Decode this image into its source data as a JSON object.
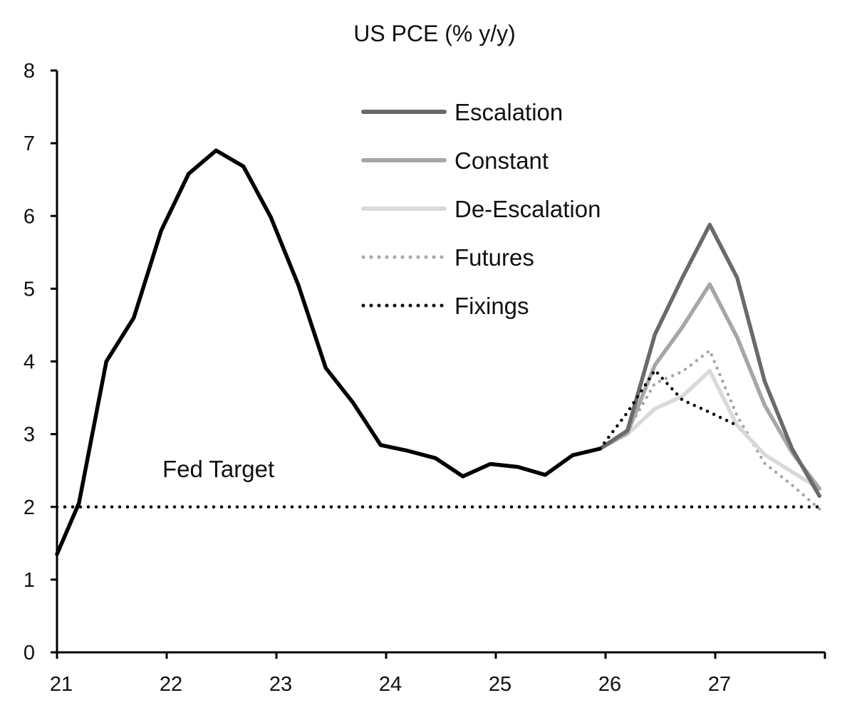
{
  "chart_data": {
    "type": "line",
    "title": "US PCE (% y/y)",
    "xlabel": "",
    "ylabel": "",
    "xlim": [
      21,
      28
    ],
    "ylim": [
      0,
      8
    ],
    "x_ticks": [
      {
        "value": 21,
        "label": "21"
      },
      {
        "value": 22,
        "label": "22"
      },
      {
        "value": 23,
        "label": "23"
      },
      {
        "value": 24,
        "label": "24"
      },
      {
        "value": 25,
        "label": "25"
      },
      {
        "value": 26,
        "label": "26"
      },
      {
        "value": 27,
        "label": "27"
      }
    ],
    "y_ticks": [
      {
        "value": 0,
        "label": "0"
      },
      {
        "value": 1,
        "label": "1"
      },
      {
        "value": 2,
        "label": "2"
      },
      {
        "value": 3,
        "label": "3"
      },
      {
        "value": 4,
        "label": "4"
      },
      {
        "value": 5,
        "label": "5"
      },
      {
        "value": 6,
        "label": "6"
      },
      {
        "value": 7,
        "label": "7"
      },
      {
        "value": 8,
        "label": "8"
      }
    ],
    "grid": false,
    "legend_position": "top-center",
    "series": [
      {
        "name": "",
        "color": "#000000",
        "style": "solid",
        "points": [
          [
            21.0,
            1.35
          ],
          [
            21.2,
            2.05
          ],
          [
            21.45,
            4.0
          ],
          [
            21.7,
            4.6
          ],
          [
            21.95,
            5.8
          ],
          [
            22.2,
            6.58
          ],
          [
            22.45,
            6.9
          ],
          [
            22.7,
            6.68
          ],
          [
            22.95,
            5.98
          ],
          [
            23.2,
            5.05
          ],
          [
            23.45,
            3.91
          ],
          [
            23.7,
            3.43
          ],
          [
            23.95,
            2.85
          ],
          [
            24.2,
            2.77
          ],
          [
            24.45,
            2.67
          ],
          [
            24.7,
            2.42
          ],
          [
            24.95,
            2.59
          ],
          [
            25.2,
            2.55
          ],
          [
            25.45,
            2.44
          ],
          [
            25.7,
            2.71
          ],
          [
            25.95,
            2.8
          ]
        ]
      },
      {
        "name": "Escalation",
        "color": "#6a6a6a",
        "style": "solid",
        "points": [
          [
            25.95,
            2.8
          ],
          [
            26.2,
            3.05
          ],
          [
            26.45,
            4.37
          ],
          [
            26.7,
            5.15
          ],
          [
            26.95,
            5.88
          ],
          [
            27.2,
            5.15
          ],
          [
            27.45,
            3.73
          ],
          [
            27.7,
            2.8
          ],
          [
            27.95,
            2.15
          ]
        ]
      },
      {
        "name": "Constant",
        "color": "#a6a6a6",
        "style": "solid",
        "points": [
          [
            25.95,
            2.8
          ],
          [
            26.2,
            3.02
          ],
          [
            26.45,
            3.95
          ],
          [
            26.7,
            4.47
          ],
          [
            26.95,
            5.06
          ],
          [
            27.2,
            4.33
          ],
          [
            27.45,
            3.4
          ],
          [
            27.7,
            2.75
          ],
          [
            27.95,
            2.25
          ]
        ]
      },
      {
        "name": "De-Escalation",
        "color": "#d9d9d9",
        "style": "solid",
        "points": [
          [
            25.95,
            2.8
          ],
          [
            26.2,
            3.0
          ],
          [
            26.45,
            3.35
          ],
          [
            26.7,
            3.52
          ],
          [
            26.95,
            3.87
          ],
          [
            27.2,
            3.12
          ],
          [
            27.45,
            2.72
          ],
          [
            27.7,
            2.48
          ],
          [
            27.95,
            2.25
          ]
        ]
      },
      {
        "name": "Futures",
        "color": "#a6a6a6",
        "style": "dotted",
        "points": [
          [
            25.95,
            2.8
          ],
          [
            26.2,
            3.05
          ],
          [
            26.45,
            3.7
          ],
          [
            26.7,
            3.86
          ],
          [
            26.95,
            4.15
          ],
          [
            27.2,
            3.25
          ],
          [
            27.45,
            2.6
          ],
          [
            27.7,
            2.3
          ],
          [
            27.95,
            1.97
          ]
        ]
      },
      {
        "name": "Fixings",
        "color": "#000000",
        "style": "dotted",
        "points": [
          [
            25.95,
            2.8
          ],
          [
            26.2,
            3.3
          ],
          [
            26.45,
            3.88
          ],
          [
            26.7,
            3.47
          ],
          [
            26.95,
            3.3
          ],
          [
            27.2,
            3.12
          ]
        ]
      }
    ],
    "reference_line": {
      "label": "Fed Target",
      "value": 2,
      "color": "#000000",
      "style": "dotted"
    }
  }
}
